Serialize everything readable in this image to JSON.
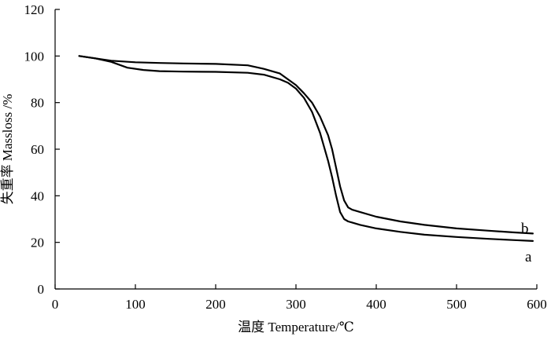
{
  "chart_data": {
    "type": "line",
    "title": "",
    "xlabel": "温度 Temperature/℃",
    "ylabel": "失重率 Massloss /%",
    "xlim": [
      0,
      600
    ],
    "ylim": [
      0,
      120
    ],
    "xticks": [
      0,
      100,
      200,
      300,
      400,
      500,
      600
    ],
    "yticks": [
      0,
      20,
      40,
      60,
      80,
      100,
      120
    ],
    "grid": false,
    "legend": "none",
    "series": [
      {
        "name": "a",
        "x": [
          30,
          50,
          70,
          90,
          110,
          130,
          160,
          200,
          240,
          260,
          280,
          290,
          300,
          310,
          320,
          330,
          340,
          345,
          350,
          355,
          360,
          365,
          370,
          380,
          400,
          430,
          460,
          500,
          540,
          570,
          595
        ],
        "y": [
          100,
          99,
          97.5,
          95,
          94,
          93.5,
          93.3,
          93.2,
          92.8,
          92,
          90,
          88.5,
          86,
          82,
          76,
          67,
          55,
          48,
          40,
          33,
          30,
          29,
          28.5,
          27.5,
          26,
          24.5,
          23.3,
          22.3,
          21.5,
          21,
          20.6
        ]
      },
      {
        "name": "b",
        "x": [
          30,
          50,
          70,
          100,
          130,
          160,
          200,
          240,
          260,
          280,
          290,
          300,
          310,
          320,
          330,
          340,
          345,
          350,
          355,
          360,
          365,
          370,
          380,
          400,
          430,
          460,
          500,
          540,
          570,
          595
        ],
        "y": [
          100,
          99,
          98,
          97.3,
          97,
          96.8,
          96.6,
          96,
          94.5,
          92.5,
          90,
          87.5,
          84,
          80,
          74,
          66,
          60,
          52,
          44,
          38,
          35,
          34,
          33,
          31,
          29,
          27.5,
          26,
          25,
          24.3,
          23.8
        ]
      }
    ],
    "annotations": [
      "b",
      "a"
    ]
  }
}
